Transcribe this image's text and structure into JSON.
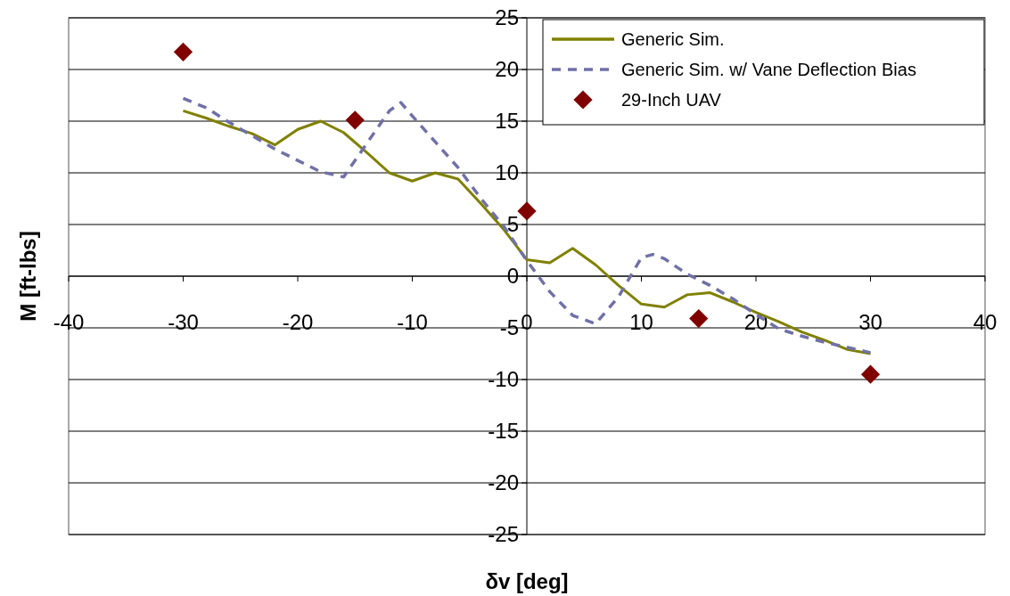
{
  "chart_data": {
    "type": "line",
    "xlabel": "δv [deg]",
    "ylabel": "M [ft-lbs]",
    "xlim": [
      -40,
      40
    ],
    "xticks": [
      -40,
      -30,
      -20,
      -10,
      0,
      10,
      20,
      30,
      40
    ],
    "ylim": [
      -25,
      25
    ],
    "yticks": [
      -25,
      -20,
      -15,
      -10,
      -5,
      0,
      5,
      10,
      15,
      20,
      25
    ],
    "grid": "y",
    "legend": "top right",
    "series": [
      {
        "name": "Generic Sim.",
        "color": "#808000",
        "line_style": "solid",
        "marker": "none",
        "x": [
          -30,
          -28,
          -26,
          -24,
          -22,
          -20,
          -18,
          -16,
          -14,
          -12,
          -10,
          -8,
          -6,
          -4,
          -2,
          0,
          2,
          4,
          6,
          8,
          10,
          12,
          14,
          16,
          18,
          20,
          22,
          24,
          26,
          28,
          30
        ],
        "values": [
          16,
          15.3,
          14.5,
          13.8,
          12.7,
          14.2,
          15,
          13.9,
          12,
          10,
          9.2,
          10,
          9.4,
          7,
          4.5,
          1.6,
          1.3,
          2.7,
          1.1,
          -0.9,
          -2.7,
          -3,
          -1.8,
          -1.6,
          -2.5,
          -3.5,
          -4.4,
          -5.4,
          -6.2,
          -7.1,
          -7.5
        ]
      },
      {
        "name": "Generic Sim. w/ Vane Deflection Bias",
        "color": "#7070a8",
        "line_style": "dashed",
        "marker": "none",
        "x": [
          -30,
          -28,
          -26,
          -24,
          -22,
          -20,
          -18,
          -16,
          -14,
          -12,
          -11,
          -10,
          -8,
          -6,
          -4,
          -2,
          0,
          2,
          4,
          6,
          8,
          10,
          11,
          12,
          14,
          16,
          18,
          20,
          22,
          24,
          26,
          28,
          30
        ],
        "values": [
          17.2,
          16.3,
          14.9,
          13.6,
          12.3,
          11.2,
          10.1,
          9.6,
          12.8,
          16,
          16.8,
          15.5,
          13,
          10.5,
          7.5,
          4.8,
          1.5,
          -1.5,
          -3.8,
          -4.6,
          -2,
          1.8,
          2.1,
          1.7,
          0.2,
          -0.9,
          -2.2,
          -3.7,
          -5.1,
          -5.8,
          -6.4,
          -6.9,
          -7.4
        ]
      },
      {
        "name": "29-Inch UAV",
        "type": "scatter",
        "color": "#800000",
        "marker": "diamond",
        "x": [
          -30,
          -15,
          0,
          15,
          30
        ],
        "values": [
          21.7,
          15.1,
          6.3,
          -4.1,
          -9.5
        ]
      }
    ]
  }
}
